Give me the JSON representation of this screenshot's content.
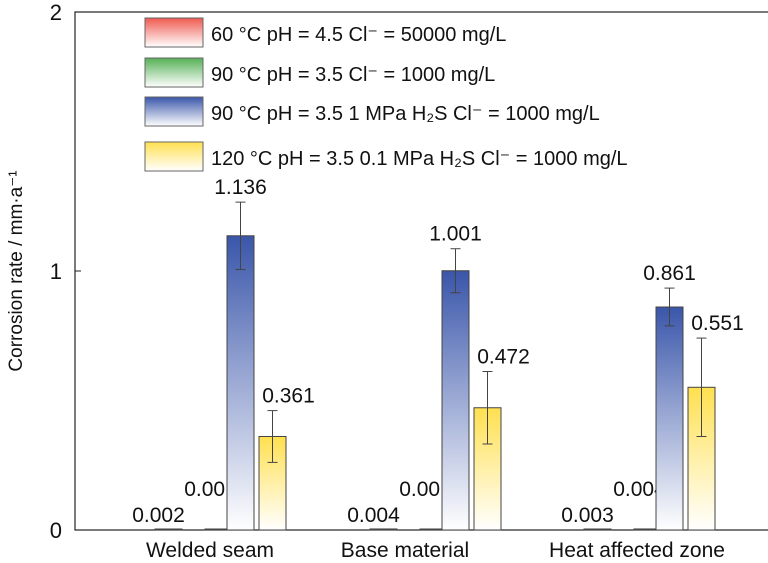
{
  "chart_data": {
    "type": "bar",
    "title": "",
    "xlabel": "",
    "ylabel": "Corrosion rate / mm·a⁻¹",
    "ylim": [
      0,
      2
    ],
    "yticks": [
      "0",
      "1",
      "2"
    ],
    "categories": [
      "Welded seam",
      "Base material",
      "Heat affected zone"
    ],
    "legend_position": "top",
    "series": [
      {
        "name": "60 °C pH = 4.5 Cl⁻ = 50000 mg/L",
        "color": "#ef5a50",
        "values": [
          0.002,
          0.004,
          0.003
        ],
        "labels": [
          "0.002",
          "0.004",
          "0.003"
        ],
        "errors": [
          0,
          0,
          0
        ]
      },
      {
        "name": "90 °C pH = 3.5 Cl⁻ = 1000 mg/L",
        "color": "#55b055",
        "values": [
          0.001,
          0.001,
          0.004
        ],
        "labels": [
          "0.001",
          "0.001",
          "0.004"
        ],
        "errors": [
          0,
          0,
          0
        ]
      },
      {
        "name": "90 °C pH = 3.5 1 MPa H₂S Cl⁻ = 1000 mg/L",
        "color": "#3a56aa",
        "values": [
          1.136,
          1.001,
          0.861
        ],
        "labels": [
          "1.136",
          "1.001",
          "0.861"
        ],
        "errors": [
          0.13,
          0.085,
          0.073
        ]
      },
      {
        "name": "120 °C pH = 3.5 0.1 MPa H₂S Cl⁻ = 1000 mg/L",
        "color": "#ffe050",
        "values": [
          0.361,
          0.472,
          0.551
        ],
        "labels": [
          "0.361",
          "0.472",
          "0.551"
        ],
        "errors": [
          0.1,
          0.14,
          0.19
        ]
      }
    ]
  }
}
